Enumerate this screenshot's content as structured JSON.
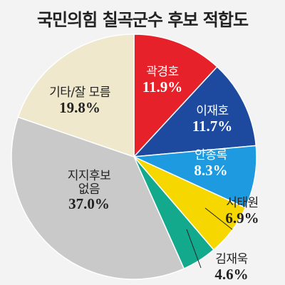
{
  "chart_data": {
    "type": "pie",
    "title": "국민의힘 칠곡군수 후보 적합도",
    "categories": [
      "곽경호",
      "이재호",
      "안종록",
      "서태원",
      "김재욱",
      "지지후보 없음",
      "기타/잘 모름"
    ],
    "values": [
      11.9,
      11.7,
      8.3,
      6.9,
      4.6,
      37.0,
      19.8
    ],
    "value_labels": [
      "11.9%",
      "11.7%",
      "8.3%",
      "6.9%",
      "4.6%",
      "37.0%",
      "19.8%"
    ],
    "colors": [
      "#e62129",
      "#1d4a9f",
      "#1e9be0",
      "#f6d800",
      "#13a98c",
      "#c9c9c9",
      "#efe8cc"
    ]
  }
}
